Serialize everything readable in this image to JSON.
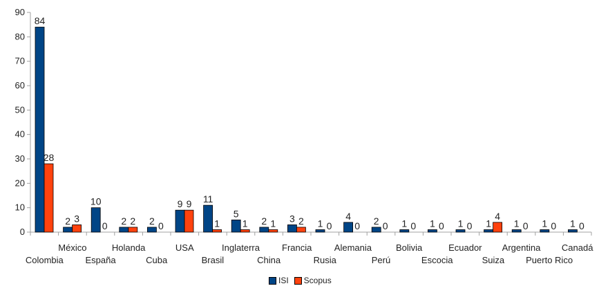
{
  "chart_data": {
    "type": "bar",
    "title": "",
    "xlabel": "",
    "ylabel": "",
    "ylim": [
      0,
      90
    ],
    "yticks": [
      0,
      10,
      20,
      30,
      40,
      50,
      60,
      70,
      80,
      90
    ],
    "grid": false,
    "legend_position": "bottom",
    "categories": [
      "Colombia",
      "México",
      "España",
      "Holanda",
      "Cuba",
      "USA",
      "Brasil",
      "Inglaterra",
      "China",
      "Francia",
      "Rusia",
      "Alemania",
      "Perú",
      "Bolivia",
      "Escocia",
      "Ecuador",
      "Suiza",
      "Argentina",
      "Puerto Rico",
      "Canadá"
    ],
    "series": [
      {
        "name": "ISI",
        "color": "#004586",
        "values": [
          84,
          2,
          10,
          2,
          2,
          9,
          11,
          5,
          2,
          3,
          1,
          4,
          2,
          1,
          1,
          1,
          1,
          1,
          1,
          1
        ]
      },
      {
        "name": "Scopus",
        "color": "#ff420e",
        "values": [
          28,
          3,
          0,
          2,
          0,
          9,
          1,
          1,
          1,
          2,
          0,
          0,
          0,
          0,
          0,
          0,
          4,
          0,
          0,
          0
        ]
      }
    ]
  }
}
